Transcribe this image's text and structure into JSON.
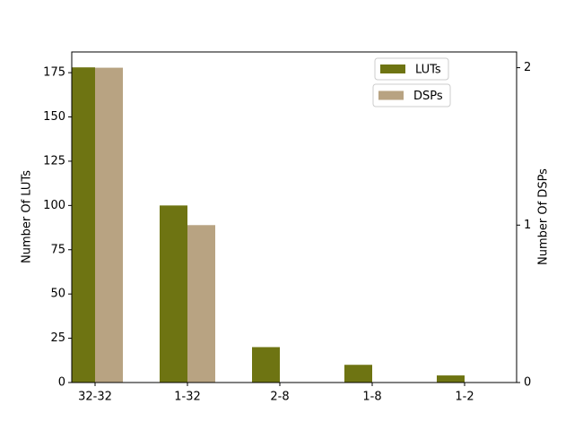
{
  "chart_data": {
    "type": "bar",
    "categories": [
      "32-32",
      "1-32",
      "2-8",
      "1-8",
      "1-2"
    ],
    "series": [
      {
        "name": "LUTs",
        "color": "#6e7412",
        "values": [
          178,
          100,
          20,
          10,
          4
        ]
      },
      {
        "name": "DSPs",
        "color": "#b8a382",
        "values": [
          2,
          1,
          0,
          0,
          0
        ],
        "axis": "y2"
      }
    ],
    "y_label": "Number Of LUTs",
    "y2_label": "Number Of DSPs",
    "ylim": [
      0,
      186.7
    ],
    "yticks": [
      0,
      25,
      50,
      75,
      100,
      125,
      150,
      175
    ],
    "y2lim": [
      0,
      2.1
    ],
    "y2ticks": [
      0,
      1,
      2
    ],
    "legend": "upper right"
  }
}
